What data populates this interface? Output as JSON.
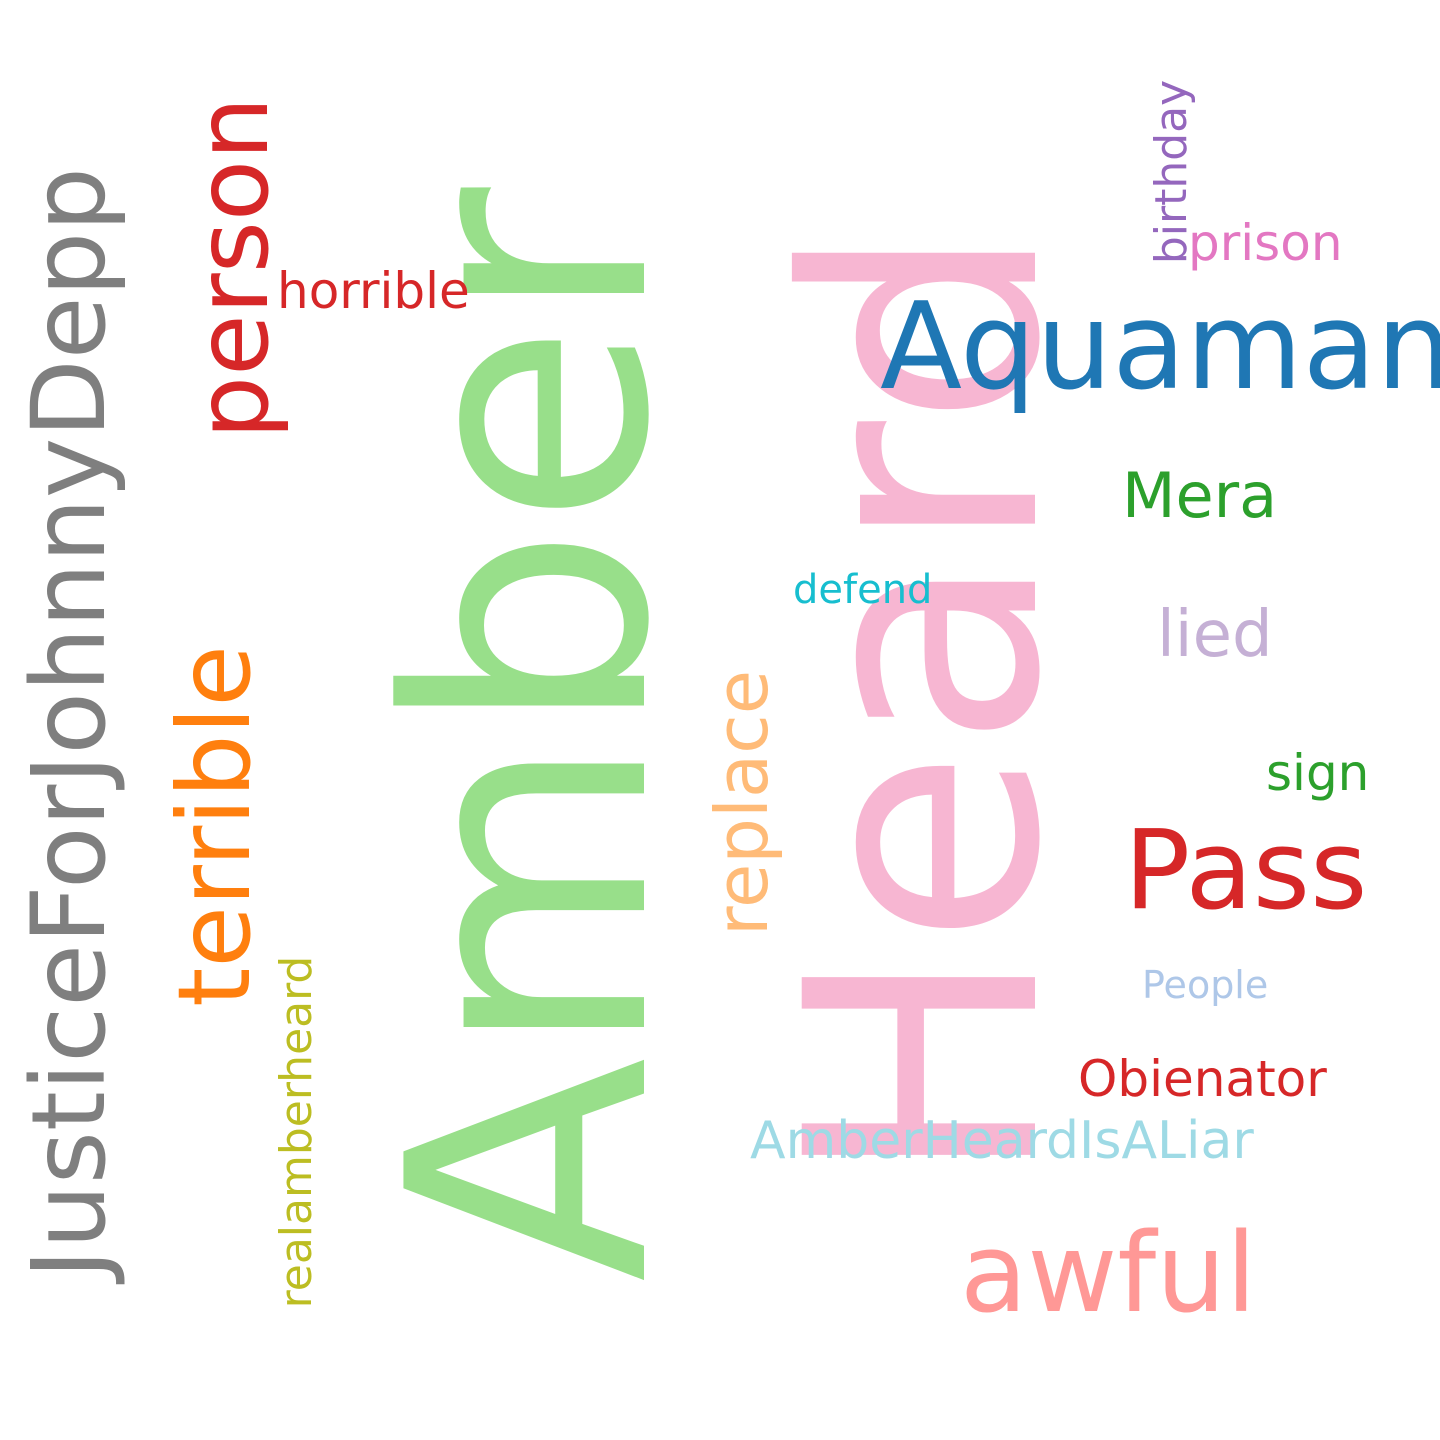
{
  "words": {
    "amber": {
      "text": "Amber",
      "color": "#98df8a",
      "orientation": "vertical"
    },
    "heard": {
      "text": "Heard",
      "color": "#f7b6d2",
      "orientation": "vertical"
    },
    "justicefordepp": {
      "text": "JusticeForJohnnyDepp",
      "color": "#7f7f7f",
      "orientation": "vertical"
    },
    "person": {
      "text": "person",
      "color": "#d62728",
      "orientation": "vertical"
    },
    "terrible": {
      "text": "terrible",
      "color": "#ff7f0e",
      "orientation": "vertical"
    },
    "replace": {
      "text": "replace",
      "color": "#ffbb78",
      "orientation": "vertical"
    },
    "realamberheard": {
      "text": "realamberheard",
      "color": "#bcbd22",
      "orientation": "vertical"
    },
    "birthday": {
      "text": "birthday",
      "color": "#9467bd",
      "orientation": "vertical"
    },
    "horrible": {
      "text": "horrible",
      "color": "#d62728",
      "orientation": "horizontal"
    },
    "aquaman": {
      "text": "Aquaman",
      "color": "#1f77b4",
      "orientation": "horizontal"
    },
    "prison": {
      "text": "prison",
      "color": "#e377c2",
      "orientation": "horizontal"
    },
    "mera": {
      "text": "Mera",
      "color": "#2ca02c",
      "orientation": "horizontal"
    },
    "defend": {
      "text": "defend",
      "color": "#17becf",
      "orientation": "horizontal"
    },
    "lied": {
      "text": "lied",
      "color": "#c5b0d5",
      "orientation": "horizontal"
    },
    "sign": {
      "text": "sign",
      "color": "#2ca02c",
      "orientation": "horizontal"
    },
    "pass": {
      "text": "Pass",
      "color": "#d62728",
      "orientation": "horizontal"
    },
    "people": {
      "text": "People",
      "color": "#aec7e8",
      "orientation": "horizontal"
    },
    "obienator": {
      "text": "Obienator",
      "color": "#d62728",
      "orientation": "horizontal"
    },
    "amberheardisaliar": {
      "text": "AmberHeardIsALiar",
      "color": "#9edae5",
      "orientation": "horizontal"
    },
    "awful": {
      "text": "awful",
      "color": "#ff9896",
      "orientation": "horizontal"
    }
  },
  "background_color": "#ffffff"
}
